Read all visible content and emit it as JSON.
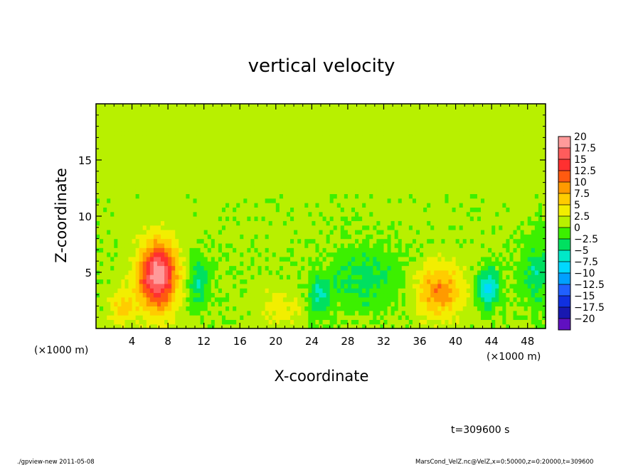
{
  "chart_data": {
    "type": "heatmap",
    "title": "vertical velocity",
    "xlabel": "X-coordinate",
    "ylabel": "Z-coordinate",
    "x_unit_left": "(×1000 m)",
    "x_unit_right": "(×1000 m)",
    "xlim": [
      0,
      50
    ],
    "ylim": [
      0,
      20
    ],
    "x_ticks": [
      4,
      8,
      12,
      16,
      20,
      24,
      28,
      32,
      36,
      40,
      44,
      48
    ],
    "x_tick_labels": [
      "4",
      "8",
      "12",
      "16",
      "20",
      "24",
      "28",
      "32",
      "36",
      "40",
      "44",
      "48"
    ],
    "y_ticks": [
      5,
      10,
      15
    ],
    "y_tick_labels": [
      "5",
      "10",
      "15"
    ],
    "colorbar": {
      "levels": [
        "20",
        "17.5",
        "15",
        "12.5",
        "10",
        "7.5",
        "5",
        "2.5",
        "0",
        "−2.5",
        "−5",
        "−7.5",
        "−10",
        "−12.5",
        "−15",
        "−17.5",
        "−20"
      ],
      "colors": [
        "#ff9a9a",
        "#ff5c5c",
        "#ff3030",
        "#ff5a10",
        "#ff9a00",
        "#ffcc00",
        "#f2ee00",
        "#b8f000",
        "#3cf000",
        "#00e060",
        "#00e8c8",
        "#00d8ff",
        "#00a0ff",
        "#2060ff",
        "#1030e0",
        "#1818b0",
        "#6010c0"
      ]
    },
    "features": [
      {
        "x": 7.0,
        "z": 5.2,
        "value": 12.0,
        "rx": 1.4,
        "rz": 1.9
      },
      {
        "x": 6.6,
        "z": 4.0,
        "value": 8.0,
        "rx": 1.6,
        "rz": 2.2
      },
      {
        "x": 38.2,
        "z": 3.4,
        "value": 9.0,
        "rx": 1.8,
        "rz": 1.6
      },
      {
        "x": 2.8,
        "z": 2.0,
        "value": 5.0,
        "rx": 1.0,
        "rz": 1.0
      },
      {
        "x": 20.5,
        "z": 2.0,
        "value": 3.0,
        "rx": 1.8,
        "rz": 1.2
      },
      {
        "x": 43.6,
        "z": 3.6,
        "value": -9.0,
        "rx": 0.9,
        "rz": 1.2
      },
      {
        "x": 24.8,
        "z": 2.8,
        "value": -6.0,
        "rx": 0.8,
        "rz": 1.2
      },
      {
        "x": 11.5,
        "z": 4.2,
        "value": -5.5,
        "rx": 0.8,
        "rz": 1.6
      },
      {
        "x": 30.0,
        "z": 4.5,
        "value": -4.0,
        "rx": 3.0,
        "rz": 2.0
      },
      {
        "x": 49.0,
        "z": 5.0,
        "value": -5.0,
        "rx": 1.2,
        "rz": 2.0
      }
    ]
  },
  "annotation": {
    "time_label": "t=309600 s"
  },
  "footer": {
    "left": "./gpview-new  2011-05-08",
    "right": "MarsCond_VelZ.nc@VelZ,x=0:50000,z=0:20000,t=309600"
  }
}
